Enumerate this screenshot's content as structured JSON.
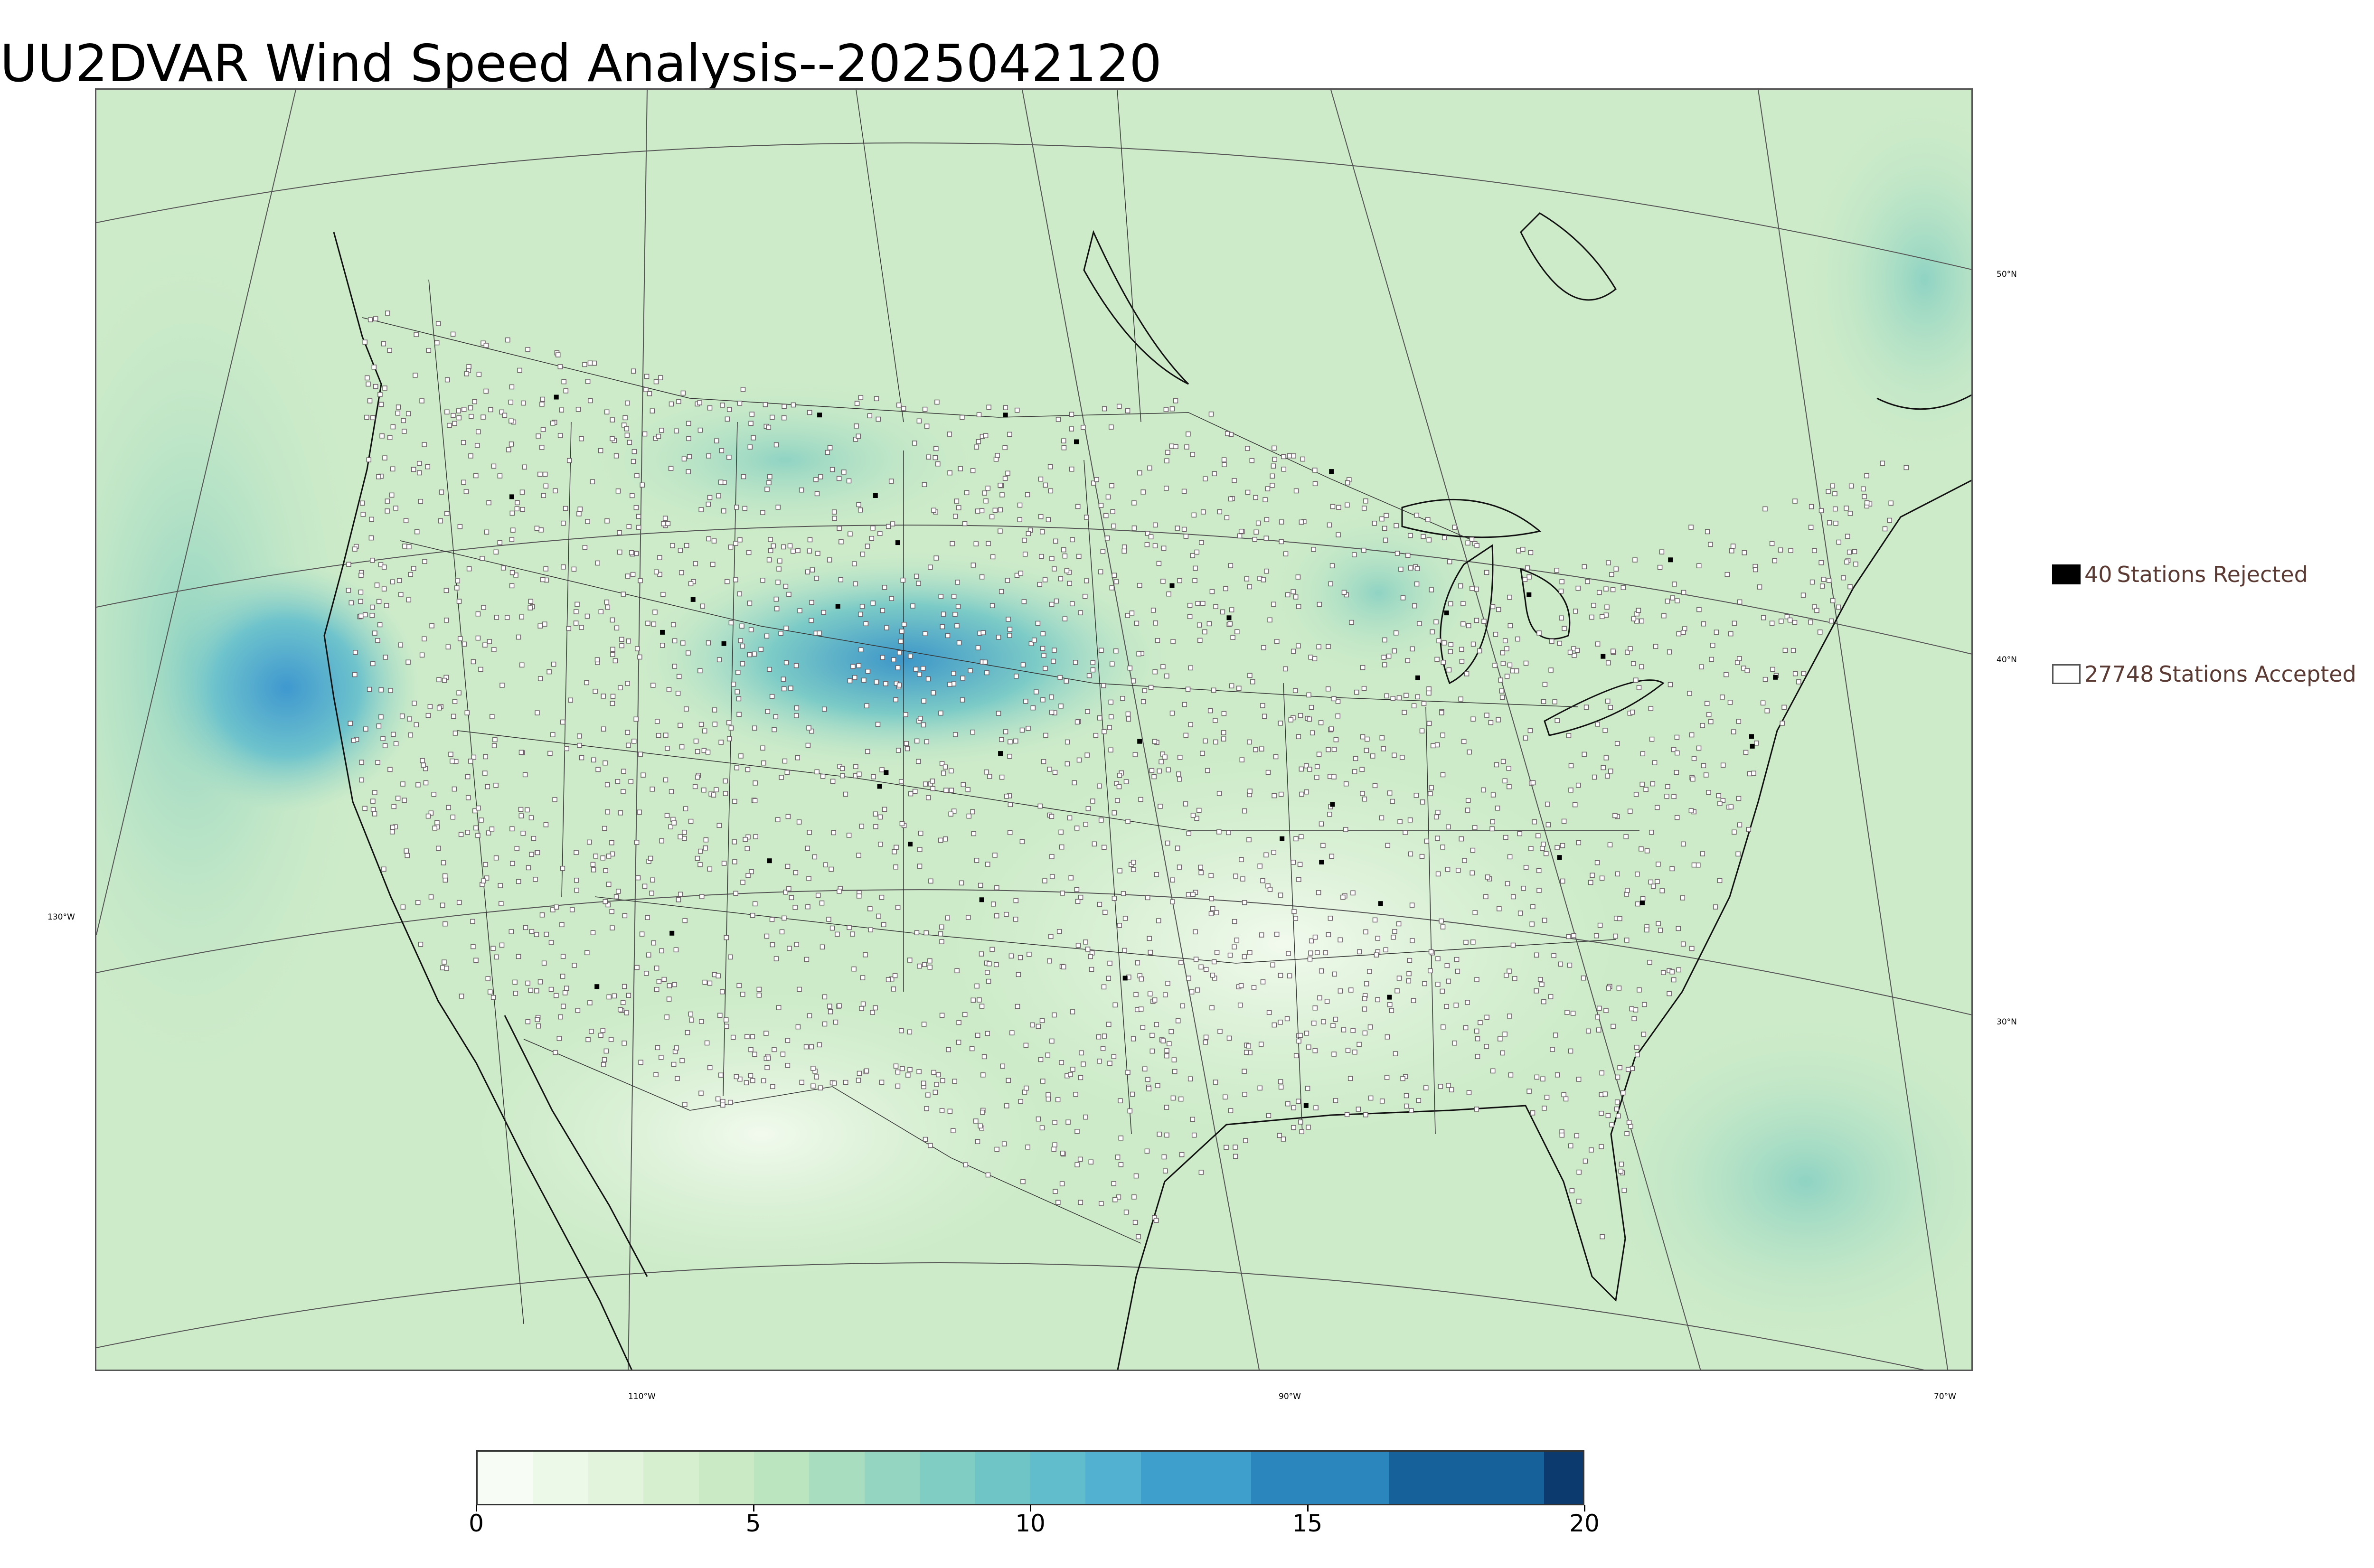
{
  "title": "UU2DVAR Wind Speed Analysis--2025042120",
  "map": {
    "lat_labels": [
      "50°N",
      "40°N",
      "30°N"
    ],
    "lon_labels": [
      "130°W",
      "110°W",
      "90°W",
      "70°W"
    ]
  },
  "legend": {
    "rejected": {
      "count": "40",
      "text": "Stations Rejected",
      "color": "#000000"
    },
    "accepted": {
      "count": "27748",
      "text": "Stations Accepted",
      "color": "#ffffff"
    }
  },
  "colorbar": {
    "ticks": [
      "0",
      "5",
      "10",
      "15",
      "20"
    ],
    "min": 0,
    "max": 20,
    "bins": [
      {
        "from": 0,
        "to": 1,
        "color": "#f7fcf5"
      },
      {
        "from": 1,
        "to": 2,
        "color": "#ecf8e8"
      },
      {
        "from": 2,
        "to": 3,
        "color": "#e2f4dc"
      },
      {
        "from": 3,
        "to": 4,
        "color": "#d5efcf"
      },
      {
        "from": 4,
        "to": 5,
        "color": "#c9eac4"
      },
      {
        "from": 5,
        "to": 6,
        "color": "#bbe5bf"
      },
      {
        "from": 6,
        "to": 7,
        "color": "#a8ddc0"
      },
      {
        "from": 7,
        "to": 8,
        "color": "#94d5c2"
      },
      {
        "from": 8,
        "to": 9,
        "color": "#80cdc4"
      },
      {
        "from": 9,
        "to": 10,
        "color": "#6fc5c6"
      },
      {
        "from": 10,
        "to": 11,
        "color": "#61bccb"
      },
      {
        "from": 11,
        "to": 12,
        "color": "#52b0d0"
      },
      {
        "from": 12,
        "to": 14,
        "color": "#3e9fcd"
      },
      {
        "from": 14,
        "to": 16.5,
        "color": "#2a86bc"
      },
      {
        "from": 16.5,
        "to": 19.3,
        "color": "#17619a"
      },
      {
        "from": 19.3,
        "to": 20,
        "color": "#0c3a6e"
      }
    ]
  }
}
